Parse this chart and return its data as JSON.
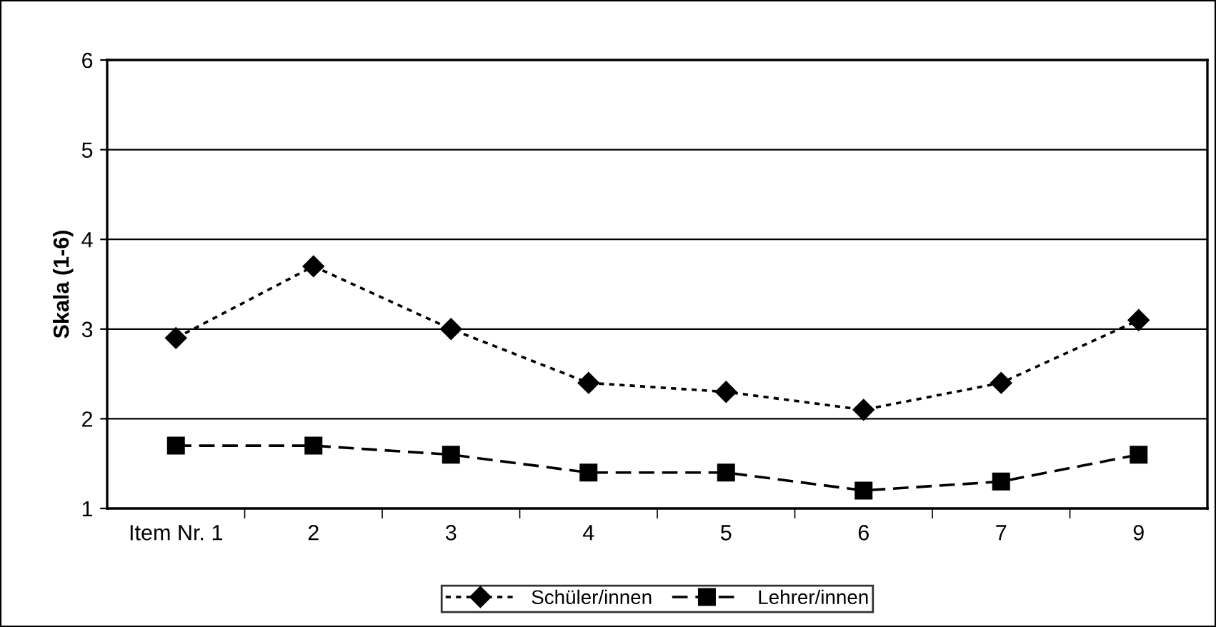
{
  "chart_data": {
    "type": "line",
    "ylabel": "Skala (1-6)",
    "categories": [
      "Item Nr. 1",
      "2",
      "3",
      "4",
      "5",
      "6",
      "7",
      "9"
    ],
    "series": [
      {
        "name": "Schüler/innen",
        "color": "#000000",
        "marker": "diamond",
        "line_style": "dotted",
        "values": [
          2.9,
          3.7,
          3.0,
          2.4,
          2.3,
          2.1,
          2.4,
          3.1
        ]
      },
      {
        "name": "Lehrer/innen",
        "color": "#000000",
        "marker": "square",
        "line_style": "dashed",
        "values": [
          1.7,
          1.7,
          1.6,
          1.4,
          1.4,
          1.2,
          1.3,
          1.6
        ]
      }
    ],
    "ylim": [
      1,
      6
    ],
    "yticks": [
      1,
      2,
      3,
      4,
      5,
      6
    ],
    "grid": "y",
    "legend": "bottom"
  }
}
